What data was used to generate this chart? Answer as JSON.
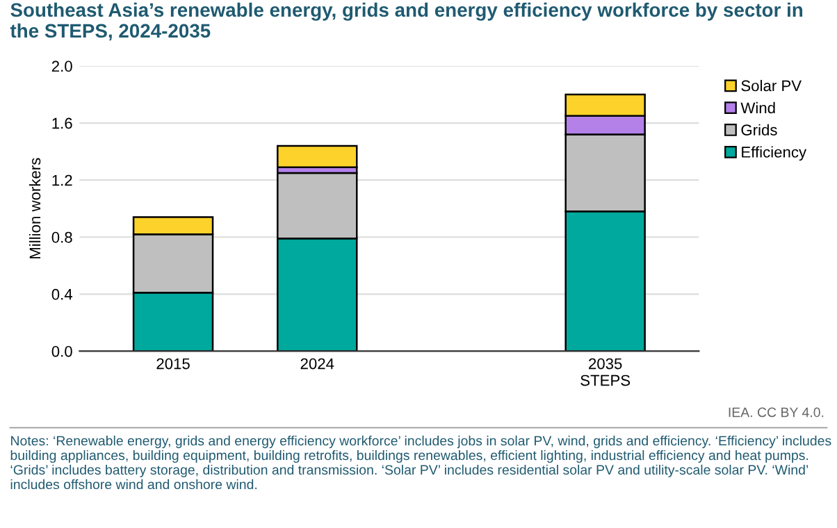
{
  "chart_data": {
    "type": "bar",
    "stacked": true,
    "title": "Southeast Asia’s renewable energy, grids and energy efficiency workforce by sector in the STEPS, 2024-2035",
    "ylabel": "Million workers",
    "categories": [
      "2015",
      "2024",
      null,
      "2035\nSTEPS"
    ],
    "series": [
      {
        "name": "Efficiency",
        "color": "#00a99d",
        "values": [
          0.41,
          0.79,
          null,
          0.98
        ]
      },
      {
        "name": "Grids",
        "color": "#bfbfbf",
        "values": [
          0.41,
          0.46,
          null,
          0.54
        ]
      },
      {
        "name": "Wind",
        "color": "#b381e8",
        "values": [
          null,
          0.04,
          null,
          0.13
        ]
      },
      {
        "name": "Solar PV",
        "color": "#fdd22a",
        "values": [
          0.12,
          0.15,
          null,
          0.15
        ]
      }
    ],
    "ylim": [
      0,
      2.0
    ],
    "yticks": [
      {
        "value": 0,
        "label": "0.0"
      },
      {
        "value": 0.4,
        "label": "0.4"
      },
      {
        "value": 0.8,
        "label": "0.8"
      },
      {
        "value": 1.2,
        "label": "1.2"
      },
      {
        "value": 1.6,
        "label": "1.6"
      },
      {
        "value": 2.0,
        "label": "2.0"
      }
    ],
    "grid": "y",
    "legend": "right",
    "annotations": [
      "IEA. CC BY 4.0.",
      "Notes: ‘Renewable energy, grids and energy efficiency workforce’ includes jobs in solar PV, wind, grids and efficiency. ‘Efficiency’ includes building appliances, building equipment, building retrofits, buildings renewables, efficient lighting, industrial efficiency and heat pumps. ‘Grids’ includes battery storage, distribution and transmission. ‘Solar PV’ includes residential solar PV and utility-scale solar PV. ‘Wind’ includes offshore wind and onshore wind."
    ]
  }
}
